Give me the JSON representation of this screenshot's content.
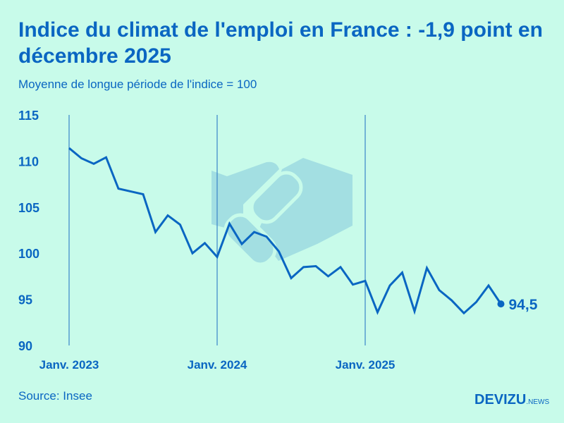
{
  "title": "Indice du climat de l'emploi en France : -1,9 point en décembre 2025",
  "subtitle": "Moyenne de longue période de l'indice = 100",
  "source": "Source: Insee",
  "logo": {
    "main": "DEVIZU",
    "suffix": ".NEWS"
  },
  "colors": {
    "background": "#c8fbea",
    "line": "#0a66c2",
    "watermark": "#a3dfe2"
  },
  "watermark_icon": "handshake-icon",
  "chart_data": {
    "type": "line",
    "title": "Indice du climat de l'emploi en France : -1,9 point en décembre 2025",
    "subtitle": "Moyenne de longue période de l'indice = 100",
    "x_start": "2023-01",
    "x_end": "2025-12",
    "x_frequency": "monthly",
    "x_tick_labels": [
      "Janv. 2023",
      "Janv. 2024",
      "Janv. 2025"
    ],
    "y_ticks": [
      90,
      95,
      100,
      105,
      110,
      115
    ],
    "ylim": [
      90,
      115
    ],
    "grid": "vertical lines at January",
    "values": [
      111.4,
      110.3,
      109.7,
      110.4,
      107.0,
      106.7,
      106.4,
      102.3,
      104.1,
      103.1,
      100.0,
      101.1,
      99.6,
      103.2,
      101.0,
      102.3,
      101.8,
      100.2,
      97.3,
      98.5,
      98.6,
      97.5,
      98.5,
      96.6,
      97.0,
      93.6,
      96.5,
      97.9,
      93.7,
      98.4,
      96.0,
      94.9,
      93.5,
      94.7,
      96.5,
      94.5
    ],
    "last_label": "94,5"
  }
}
